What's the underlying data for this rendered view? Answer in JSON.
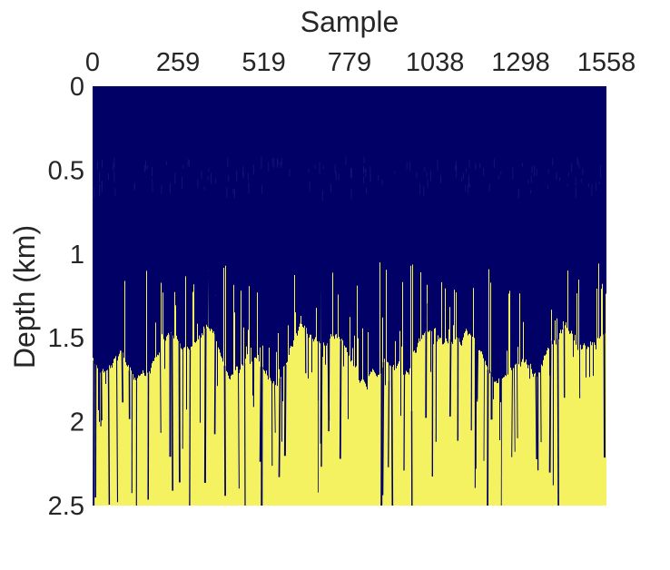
{
  "chart_data": {
    "type": "heatmap",
    "title": "",
    "xlabel": "Sample",
    "ylabel": "Depth (km)",
    "x_axis_position": "top",
    "y_axis_direction": "reversed",
    "xlim": [
      0,
      1558
    ],
    "ylim": [
      0,
      2.5
    ],
    "x_ticks": [
      0,
      259,
      519,
      779,
      1038,
      1298,
      1558
    ],
    "x_tick_labels": [
      "0",
      "259",
      "519",
      "779",
      "1038",
      "1298",
      "1558"
    ],
    "y_ticks": [
      0,
      0.5,
      1,
      1.5,
      2,
      2.5
    ],
    "y_tick_labels": [
      "0",
      "0.5",
      "1",
      "1.5",
      "2",
      "2.5"
    ],
    "grid": false,
    "legend": "none",
    "colormap": {
      "low": "#000066",
      "high": "#f5f262"
    },
    "description_of_field": "binary field: low value above a jagged boundary, high value below",
    "boundary_depth_km": {
      "min": 1.05,
      "typical": 1.6,
      "deep_spikes_max": 2.5
    }
  },
  "colors": {
    "low": "#000066",
    "high": "#f5f262",
    "text": "#262626",
    "background": "#ffffff"
  }
}
